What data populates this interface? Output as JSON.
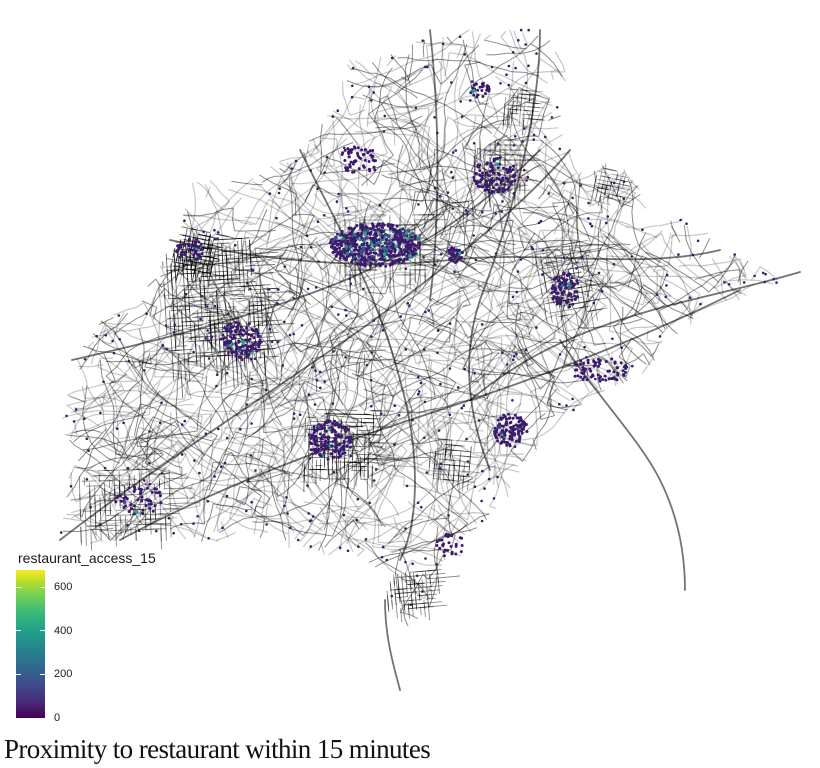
{
  "caption": "Proximity to restaurant within 15 minutes",
  "legend": {
    "title": "restaurant_access_15",
    "ticks": [
      {
        "value": 0,
        "label": "0"
      },
      {
        "value": 200,
        "label": "200"
      },
      {
        "value": 400,
        "label": "400"
      },
      {
        "value": 600,
        "label": "600"
      }
    ],
    "range": [
      0,
      680
    ],
    "colormap": "viridis",
    "colors": [
      "#440154",
      "#482878",
      "#3e4a89",
      "#31688e",
      "#26828e",
      "#1f9e89",
      "#35b779",
      "#6ece58",
      "#b5de2b",
      "#fde725"
    ]
  },
  "map": {
    "road_color": "#000000",
    "point_color": "#3b1a6e",
    "hotspot_colors": [
      "#3e4a89",
      "#2a788e",
      "#22a884"
    ]
  }
}
